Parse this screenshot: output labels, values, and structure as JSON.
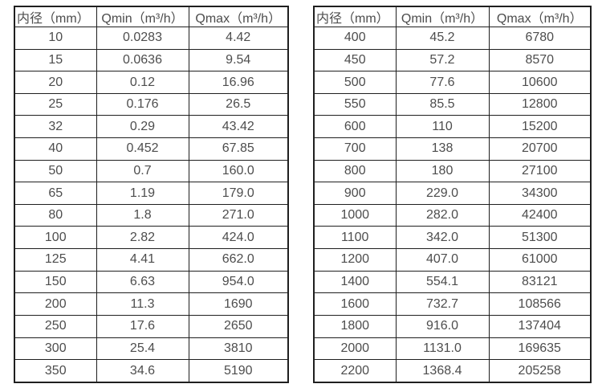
{
  "colors": {
    "background": "#ffffff",
    "border": "#1f1f1f",
    "text": "#4d4d4d"
  },
  "chart_data": [
    {
      "type": "table",
      "title": "",
      "columns": [
        "内径（mm）",
        "Qmin（m³/h）",
        "Qmax（m³/h）"
      ],
      "rows": [
        [
          "10",
          "0.0283",
          "4.42"
        ],
        [
          "15",
          "0.0636",
          "9.54"
        ],
        [
          "20",
          "0.12",
          "16.96"
        ],
        [
          "25",
          "0.176",
          "26.5"
        ],
        [
          "32",
          "0.29",
          "43.42"
        ],
        [
          "40",
          "0.452",
          "67.85"
        ],
        [
          "50",
          "0.7",
          "160.0"
        ],
        [
          "65",
          "1.19",
          "179.0"
        ],
        [
          "80",
          "1.8",
          "271.0"
        ],
        [
          "100",
          "2.82",
          "424.0"
        ],
        [
          "125",
          "4.41",
          "662.0"
        ],
        [
          "150",
          "6.63",
          "954.0"
        ],
        [
          "200",
          "11.3",
          "1690"
        ],
        [
          "250",
          "17.6",
          "2650"
        ],
        [
          "300",
          "25.4",
          "3810"
        ],
        [
          "350",
          "34.6",
          "5190"
        ]
      ]
    },
    {
      "type": "table",
      "title": "",
      "columns": [
        "内径（mm）",
        "Qmin（m³/h）",
        "Qmax（m³/h）"
      ],
      "rows": [
        [
          "400",
          "45.2",
          "6780"
        ],
        [
          "450",
          "57.2",
          "8570"
        ],
        [
          "500",
          "77.6",
          "10600"
        ],
        [
          "550",
          "85.5",
          "12800"
        ],
        [
          "600",
          "110",
          "15200"
        ],
        [
          "700",
          "138",
          "20700"
        ],
        [
          "800",
          "180",
          "27100"
        ],
        [
          "900",
          "229.0",
          "34300"
        ],
        [
          "1000",
          "282.0",
          "42400"
        ],
        [
          "1100",
          "342.0",
          "51300"
        ],
        [
          "1200",
          "407.0",
          "61000"
        ],
        [
          "1400",
          "554.1",
          "83121"
        ],
        [
          "1600",
          "732.7",
          "108566"
        ],
        [
          "1800",
          "916.0",
          "137404"
        ],
        [
          "2000",
          "1131.0",
          "169635"
        ],
        [
          "2200",
          "1368.4",
          "205258"
        ]
      ]
    }
  ]
}
